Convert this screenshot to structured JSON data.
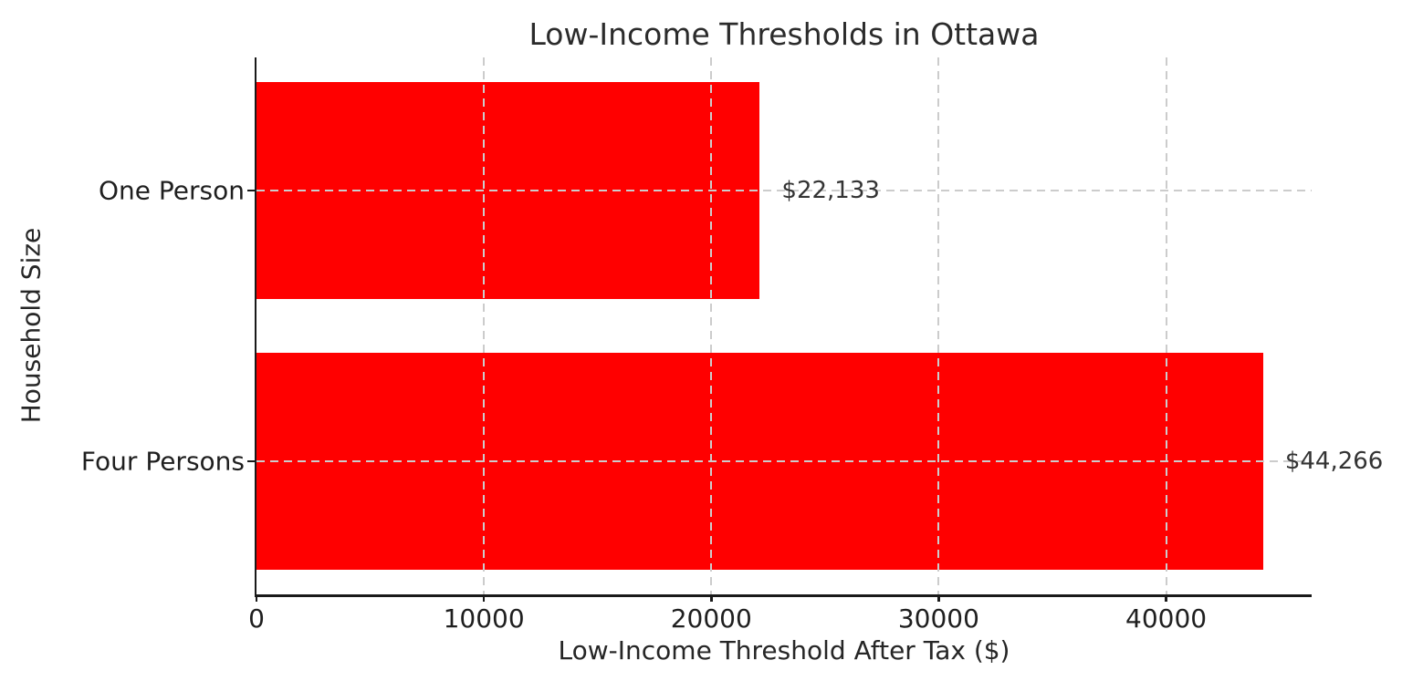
{
  "figure": {
    "title": "Low-Income Thresholds in Ottawa",
    "xlabel": "Low-Income Threshold After Tax ($)",
    "ylabel": "Household Size"
  },
  "chart_data": {
    "type": "bar",
    "orientation": "horizontal",
    "title": "Low-Income Thresholds in Ottawa",
    "xlabel": "Low-Income Threshold After Tax ($)",
    "ylabel": "Household Size",
    "categories": [
      "One Person",
      "Four Persons"
    ],
    "values": [
      22133,
      44266
    ],
    "value_labels": [
      "$22,133",
      "$44,266"
    ],
    "bar_color": "#ff0000",
    "xlim": [
      0,
      46400
    ],
    "xticks": [
      0,
      10000,
      20000,
      30000,
      40000
    ],
    "xtick_labels": [
      "0",
      "10000",
      "20000",
      "30000",
      "40000"
    ],
    "grid": true,
    "grid_style": "dashed",
    "grid_color": "#cccccc",
    "legend_position": "none",
    "spine_color": "#1a1a1a",
    "text_color": "#262626"
  }
}
